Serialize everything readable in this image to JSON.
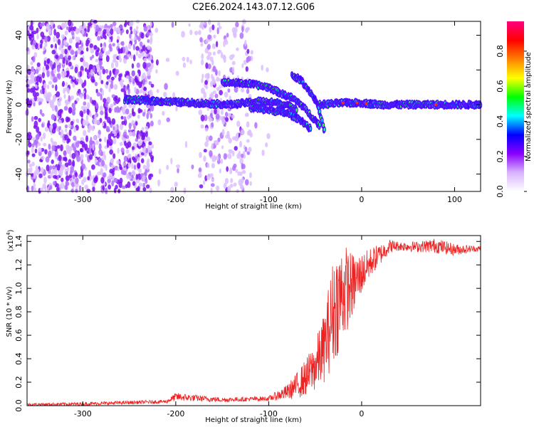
{
  "figure_title": "C2E6.2024.143.07.12.G06",
  "chart_data": [
    {
      "type": "heatmap",
      "xlabel": "Height of straight line (km)",
      "ylabel": "Frequency (Hz)",
      "xlim": [
        -360,
        128
      ],
      "ylim": [
        -50,
        48
      ],
      "x_ticks": [
        -300,
        -200,
        -100,
        0,
        100
      ],
      "y_ticks": [
        -40,
        -20,
        0,
        20,
        40
      ],
      "colorbar": {
        "label": "Normalized spectral amplitude",
        "range": [
          0.0,
          0.97
        ],
        "ticks": [
          "0.0",
          "0.2",
          "0.4",
          "0.6",
          "0.8"
        ],
        "tick_values": [
          0.0,
          0.2,
          0.4,
          0.6,
          0.8
        ],
        "colors": [
          "#ffffff",
          "#d9b3ff",
          "#8a00ff",
          "#0000ff",
          "#00ffff",
          "#00ff00",
          "#ffff00",
          "#ff8000",
          "#ff0000",
          "#ff0080"
        ]
      },
      "features": [
        {
          "name": "main_line",
          "x": [
            -255,
            -220,
            -180,
            -140,
            -110,
            -90,
            -70
          ],
          "y": [
            3,
            2,
            1,
            0,
            2,
            1,
            -2
          ]
        },
        {
          "name": "upper_branch",
          "x": [
            -150,
            -120,
            -100,
            -85,
            -75,
            -65,
            -55,
            -45
          ],
          "y": [
            13,
            12,
            10,
            6,
            4,
            0,
            -6,
            -12
          ]
        },
        {
          "name": "steep_branch",
          "x": [
            -75,
            -65,
            -55,
            -48,
            -40
          ],
          "y": [
            17,
            14,
            7,
            1,
            -15
          ]
        },
        {
          "name": "lower_branch",
          "x": [
            -120,
            -100,
            -80,
            -65,
            -55
          ],
          "y": [
            -2,
            -3,
            -5,
            -9,
            -14
          ]
        },
        {
          "name": "tail_line",
          "x": [
            -45,
            -20,
            0,
            20,
            50,
            80,
            128
          ],
          "y": [
            0,
            1,
            1,
            0,
            0,
            0,
            0
          ]
        }
      ]
    },
    {
      "type": "line",
      "xlabel": "Height of straight line (km)",
      "ylabel": "SNR (10 * v/v)",
      "y_scale_label": "(x10",
      "y_scale_exp": "4",
      "y_scale_close": ")",
      "xlim": [
        -360,
        128
      ],
      "ylim": [
        0.0,
        1.45
      ],
      "x_ticks": [
        -300,
        -200,
        -100,
        0
      ],
      "y_ticks": [
        "0.0",
        "0.2",
        "0.4",
        "0.6",
        "0.8",
        "1.0",
        "1.2",
        "1.4"
      ],
      "y_tick_values": [
        0.0,
        0.2,
        0.4,
        0.6,
        0.8,
        1.0,
        1.2,
        1.4
      ],
      "color": "#ee2222",
      "envelope": {
        "x": [
          -360,
          -300,
          -210,
          -200,
          -150,
          -100,
          -80,
          -70,
          -60,
          -50,
          -40,
          -30,
          -20,
          -10,
          0,
          10,
          20,
          30,
          40,
          60,
          80,
          100,
          128
        ],
        "low": [
          0.0,
          0.0,
          0.02,
          0.04,
          0.03,
          0.04,
          0.05,
          0.06,
          0.08,
          0.12,
          0.2,
          0.35,
          0.55,
          0.75,
          0.95,
          1.1,
          1.2,
          1.3,
          1.32,
          1.31,
          1.3,
          1.28,
          1.32
        ],
        "high": [
          0.02,
          0.03,
          0.05,
          0.11,
          0.07,
          0.08,
          0.18,
          0.28,
          0.4,
          0.55,
          0.8,
          1.3,
          1.4,
          1.3,
          1.3,
          1.35,
          1.38,
          1.42,
          1.4,
          1.4,
          1.43,
          1.38,
          1.36
        ]
      }
    }
  ]
}
